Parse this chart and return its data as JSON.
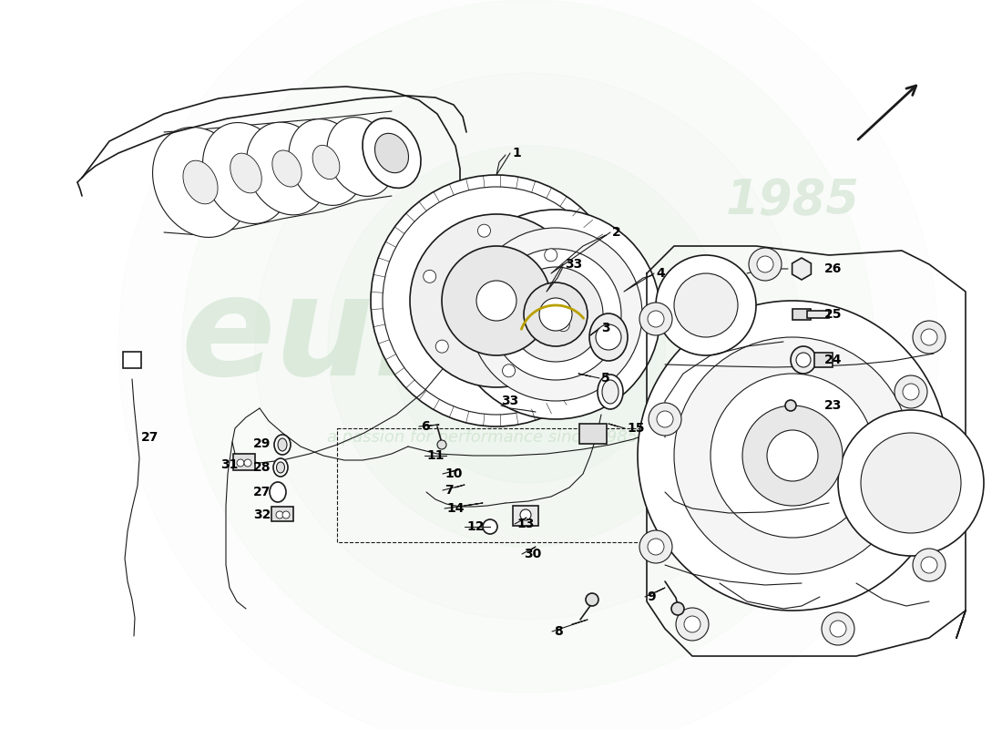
{
  "figsize": [
    11.0,
    8.0
  ],
  "dpi": 100,
  "bg_color": "#ffffff",
  "lc": "#1a1a1a",
  "watermark_green": "#c8dfc8",
  "watermark_text_color": "#b8cfb8"
}
